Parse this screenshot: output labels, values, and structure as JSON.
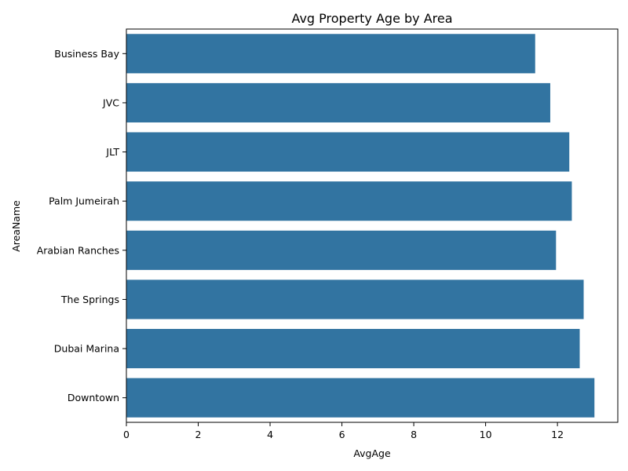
{
  "chart_data": {
    "type": "bar",
    "orientation": "horizontal",
    "title": "Avg Property Age by Area",
    "xlabel": "AvgAge",
    "ylabel": "AreaName",
    "categories": [
      "Business Bay",
      "JVC",
      "JLT",
      "Palm Jumeirah",
      "Arabian Ranches",
      "The Springs",
      "Dubai Marina",
      "Downtown"
    ],
    "values": [
      11.38,
      11.8,
      12.33,
      12.4,
      11.96,
      12.73,
      12.62,
      13.03
    ],
    "xlim": [
      0,
      13.68
    ],
    "xticks": [
      0,
      2,
      4,
      6,
      8,
      10,
      12
    ],
    "bar_color": "#3274a1",
    "grid": false
  }
}
